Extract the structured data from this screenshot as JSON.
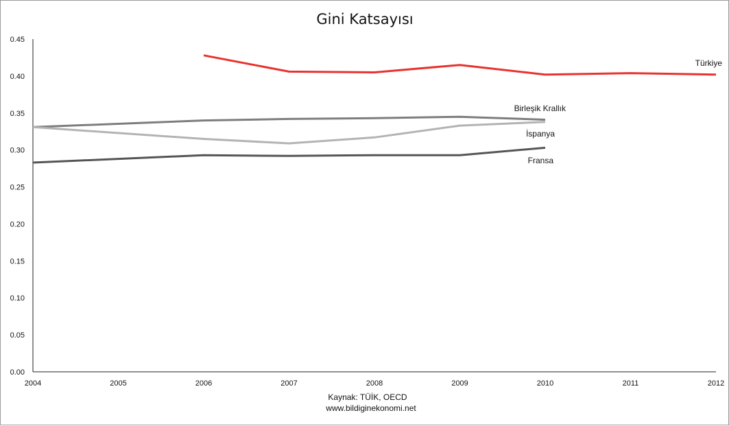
{
  "chart_data": {
    "type": "line",
    "title": "Gini Katsayısı",
    "x": [
      2004,
      2005,
      2006,
      2007,
      2008,
      2009,
      2010,
      2011,
      2012
    ],
    "x_tick_labels": [
      "2004",
      "2005",
      "2006",
      "2007",
      "2008",
      "2009",
      "2010",
      "2011",
      "2012"
    ],
    "y_tick_labels": [
      "0.00",
      "0.05",
      "0.10",
      "0.15",
      "0.20",
      "0.25",
      "0.30",
      "0.35",
      "0.40",
      "0.45"
    ],
    "ylim": [
      0,
      0.45
    ],
    "grid": false,
    "series": [
      {
        "name": "Türkiye",
        "color": "#e8322f",
        "x": [
          2006,
          2007,
          2008,
          2009,
          2010,
          2011,
          2012
        ],
        "values": [
          0.428,
          0.406,
          0.405,
          0.415,
          0.402,
          0.404,
          0.402
        ]
      },
      {
        "name": "Birleşik Krallık",
        "color": "#7d7d7d",
        "x": [
          2004,
          2006,
          2007,
          2008,
          2009,
          2010
        ],
        "values": [
          0.331,
          0.34,
          0.342,
          0.343,
          0.345,
          0.341
        ]
      },
      {
        "name": "İspanya",
        "color": "#b3b3b3",
        "x": [
          2004,
          2006,
          2007,
          2008,
          2009,
          2010
        ],
        "values": [
          0.331,
          0.315,
          0.309,
          0.317,
          0.333,
          0.338
        ]
      },
      {
        "name": "Fransa",
        "color": "#555555",
        "x": [
          2004,
          2006,
          2007,
          2008,
          2009,
          2010
        ],
        "values": [
          0.283,
          0.293,
          0.292,
          0.293,
          0.293,
          0.303
        ]
      }
    ],
    "source_line": "Kaynak: TÜİK, OECD",
    "website": "www.bildiginekonomi.net"
  }
}
